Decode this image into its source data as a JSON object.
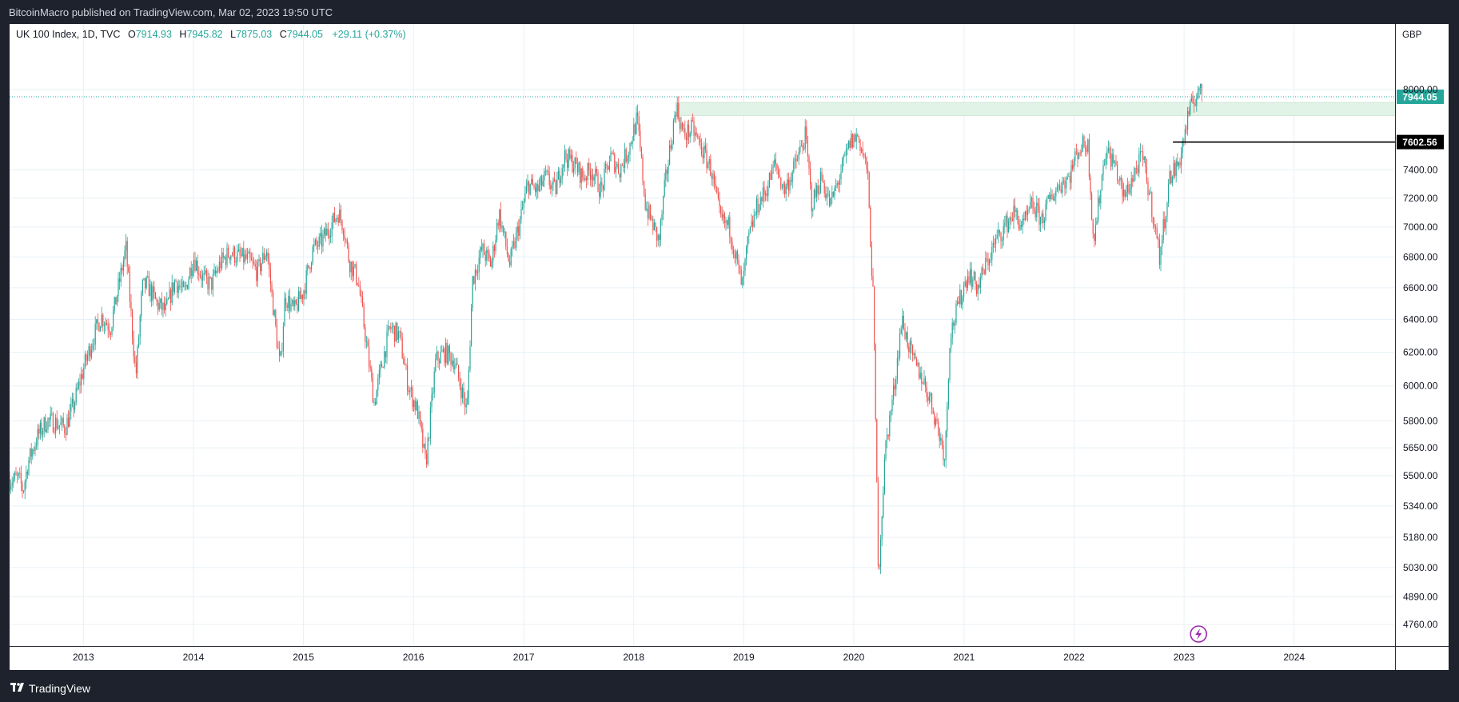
{
  "header": {
    "publisher_line": "BitcoinMacro published on TradingView.com, Mar 02, 2023 19:50 UTC"
  },
  "footer": {
    "brand": "TradingView",
    "logo_icon": "tradingview-logo-icon"
  },
  "legend": {
    "symbol": "UK 100 Index, 1D, TVC",
    "open_label": "O",
    "open": "7914.93",
    "high_label": "H",
    "high": "7945.82",
    "low_label": "L",
    "low": "7875.03",
    "close_label": "C",
    "close": "7944.05",
    "change": "+29.11 (+0.37%)"
  },
  "colors": {
    "up": "#26a69a",
    "down": "#ef5350",
    "grid": "#e8f1f6",
    "text": "#131722",
    "accent": "#26a69a",
    "level_line": "#000000",
    "zone": "#e1f2e6",
    "event": "#9c27b0"
  },
  "chart_data": {
    "type": "candlestick",
    "currency": "GBP",
    "x_ticks": [
      "2013",
      "2014",
      "2015",
      "2016",
      "2017",
      "2018",
      "2019",
      "2020",
      "2021",
      "2022",
      "2023",
      "2024"
    ],
    "y_ticks": [
      "8000.00",
      "7400.00",
      "7200.00",
      "7000.00",
      "6800.00",
      "6600.00",
      "6400.00",
      "6200.00",
      "6000.00",
      "5800.00",
      "5650.00",
      "5500.00",
      "5340.00",
      "5180.00",
      "5030.00",
      "4890.00",
      "4760.00"
    ],
    "y_scale": "log",
    "last_price_label": "7944.05",
    "horizontal_level_label": "7602.56",
    "horizontal_level_start": "2022-11-25",
    "resistance_zone": {
      "from": 7800,
      "to": 7900,
      "start": "2018-05-20"
    },
    "event_icon": "lightning-icon",
    "event_date": "2023-02-18",
    "series": [
      {
        "d": "2012-06-01",
        "v": 5480
      },
      {
        "d": "2012-06-15",
        "v": 5420
      },
      {
        "d": "2012-07-01",
        "v": 5570
      },
      {
        "d": "2012-08-01",
        "v": 5710
      },
      {
        "d": "2012-09-01",
        "v": 5800
      },
      {
        "d": "2012-10-01",
        "v": 5790
      },
      {
        "d": "2012-11-01",
        "v": 5760
      },
      {
        "d": "2012-12-01",
        "v": 5900
      },
      {
        "d": "2013-01-01",
        "v": 6100
      },
      {
        "d": "2013-02-01",
        "v": 6280
      },
      {
        "d": "2013-03-01",
        "v": 6420
      },
      {
        "d": "2013-04-01",
        "v": 6350
      },
      {
        "d": "2013-05-22",
        "v": 6860
      },
      {
        "d": "2013-06-24",
        "v": 6050
      },
      {
        "d": "2013-07-15",
        "v": 6600
      },
      {
        "d": "2013-08-01",
        "v": 6620
      },
      {
        "d": "2013-09-01",
        "v": 6500
      },
      {
        "d": "2013-10-01",
        "v": 6450
      },
      {
        "d": "2013-11-01",
        "v": 6650
      },
      {
        "d": "2013-12-01",
        "v": 6560
      },
      {
        "d": "2014-01-01",
        "v": 6800
      },
      {
        "d": "2014-02-01",
        "v": 6660
      },
      {
        "d": "2014-03-01",
        "v": 6620
      },
      {
        "d": "2014-04-01",
        "v": 6760
      },
      {
        "d": "2014-05-01",
        "v": 6830
      },
      {
        "d": "2014-06-01",
        "v": 6800
      },
      {
        "d": "2014-07-01",
        "v": 6780
      },
      {
        "d": "2014-08-01",
        "v": 6700
      },
      {
        "d": "2014-09-01",
        "v": 6850
      },
      {
        "d": "2014-10-16",
        "v": 6100
      },
      {
        "d": "2014-11-01",
        "v": 6550
      },
      {
        "d": "2014-12-01",
        "v": 6450
      },
      {
        "d": "2015-01-01",
        "v": 6580
      },
      {
        "d": "2015-02-01",
        "v": 6850
      },
      {
        "d": "2015-03-01",
        "v": 6900
      },
      {
        "d": "2015-04-27",
        "v": 7100
      },
      {
        "d": "2015-05-15",
        "v": 7000
      },
      {
        "d": "2015-06-01",
        "v": 6780
      },
      {
        "d": "2015-07-01",
        "v": 6650
      },
      {
        "d": "2015-08-24",
        "v": 5900
      },
      {
        "d": "2015-09-15",
        "v": 6100
      },
      {
        "d": "2015-10-15",
        "v": 6350
      },
      {
        "d": "2015-11-15",
        "v": 6300
      },
      {
        "d": "2015-12-15",
        "v": 6000
      },
      {
        "d": "2016-01-15",
        "v": 5850
      },
      {
        "d": "2016-02-11",
        "v": 5560
      },
      {
        "d": "2016-03-15",
        "v": 6150
      },
      {
        "d": "2016-04-15",
        "v": 6200
      },
      {
        "d": "2016-05-15",
        "v": 6150
      },
      {
        "d": "2016-06-27",
        "v": 5850
      },
      {
        "d": "2016-07-15",
        "v": 6650
      },
      {
        "d": "2016-08-15",
        "v": 6850
      },
      {
        "d": "2016-09-15",
        "v": 6750
      },
      {
        "d": "2016-10-11",
        "v": 7100
      },
      {
        "d": "2016-11-15",
        "v": 6750
      },
      {
        "d": "2016-12-15",
        "v": 7000
      },
      {
        "d": "2017-01-15",
        "v": 7300
      },
      {
        "d": "2017-02-15",
        "v": 7250
      },
      {
        "d": "2017-03-15",
        "v": 7350
      },
      {
        "d": "2017-04-15",
        "v": 7250
      },
      {
        "d": "2017-05-15",
        "v": 7500
      },
      {
        "d": "2017-06-15",
        "v": 7450
      },
      {
        "d": "2017-07-15",
        "v": 7350
      },
      {
        "d": "2017-08-15",
        "v": 7400
      },
      {
        "d": "2017-09-15",
        "v": 7250
      },
      {
        "d": "2017-10-15",
        "v": 7500
      },
      {
        "d": "2017-11-15",
        "v": 7400
      },
      {
        "d": "2017-12-15",
        "v": 7550
      },
      {
        "d": "2018-01-12",
        "v": 7780
      },
      {
        "d": "2018-02-09",
        "v": 7150
      },
      {
        "d": "2018-03-26",
        "v": 6900
      },
      {
        "d": "2018-04-15",
        "v": 7300
      },
      {
        "d": "2018-05-22",
        "v": 7880
      },
      {
        "d": "2018-06-15",
        "v": 7650
      },
      {
        "d": "2018-07-15",
        "v": 7700
      },
      {
        "d": "2018-08-15",
        "v": 7550
      },
      {
        "d": "2018-09-15",
        "v": 7400
      },
      {
        "d": "2018-10-15",
        "v": 7050
      },
      {
        "d": "2018-11-15",
        "v": 7000
      },
      {
        "d": "2018-12-27",
        "v": 6600
      },
      {
        "d": "2019-01-15",
        "v": 6900
      },
      {
        "d": "2019-02-15",
        "v": 7150
      },
      {
        "d": "2019-03-15",
        "v": 7250
      },
      {
        "d": "2019-04-15",
        "v": 7450
      },
      {
        "d": "2019-05-15",
        "v": 7250
      },
      {
        "d": "2019-06-15",
        "v": 7400
      },
      {
        "d": "2019-07-25",
        "v": 7650
      },
      {
        "d": "2019-08-15",
        "v": 7150
      },
      {
        "d": "2019-09-15",
        "v": 7350
      },
      {
        "d": "2019-10-15",
        "v": 7150
      },
      {
        "d": "2019-11-15",
        "v": 7350
      },
      {
        "d": "2019-12-20",
        "v": 7600
      },
      {
        "d": "2020-01-15",
        "v": 7650
      },
      {
        "d": "2020-02-15",
        "v": 7400
      },
      {
        "d": "2020-03-06",
        "v": 6500
      },
      {
        "d": "2020-03-23",
        "v": 4990
      },
      {
        "d": "2020-04-15",
        "v": 5650
      },
      {
        "d": "2020-05-15",
        "v": 6000
      },
      {
        "d": "2020-06-08",
        "v": 6400
      },
      {
        "d": "2020-07-15",
        "v": 6150
      },
      {
        "d": "2020-08-15",
        "v": 6050
      },
      {
        "d": "2020-09-15",
        "v": 5900
      },
      {
        "d": "2020-10-30",
        "v": 5600
      },
      {
        "d": "2020-11-15",
        "v": 6300
      },
      {
        "d": "2020-12-15",
        "v": 6500
      },
      {
        "d": "2021-01-15",
        "v": 6700
      },
      {
        "d": "2021-02-15",
        "v": 6600
      },
      {
        "d": "2021-03-15",
        "v": 6750
      },
      {
        "d": "2021-04-15",
        "v": 6900
      },
      {
        "d": "2021-05-15",
        "v": 7000
      },
      {
        "d": "2021-06-15",
        "v": 7100
      },
      {
        "d": "2021-07-15",
        "v": 7000
      },
      {
        "d": "2021-08-15",
        "v": 7150
      },
      {
        "d": "2021-09-15",
        "v": 7050
      },
      {
        "d": "2021-10-15",
        "v": 7200
      },
      {
        "d": "2021-11-15",
        "v": 7300
      },
      {
        "d": "2021-12-15",
        "v": 7350
      },
      {
        "d": "2022-01-15",
        "v": 7550
      },
      {
        "d": "2022-02-15",
        "v": 7600
      },
      {
        "d": "2022-03-07",
        "v": 6900
      },
      {
        "d": "2022-04-15",
        "v": 7550
      },
      {
        "d": "2022-05-15",
        "v": 7450
      },
      {
        "d": "2022-06-15",
        "v": 7200
      },
      {
        "d": "2022-07-15",
        "v": 7350
      },
      {
        "d": "2022-08-15",
        "v": 7500
      },
      {
        "d": "2022-09-15",
        "v": 7150
      },
      {
        "d": "2022-10-12",
        "v": 6800
      },
      {
        "d": "2022-11-15",
        "v": 7350
      },
      {
        "d": "2022-12-15",
        "v": 7450
      },
      {
        "d": "2023-01-15",
        "v": 7800
      },
      {
        "d": "2023-02-16",
        "v": 8000
      },
      {
        "d": "2023-03-02",
        "v": 7944
      }
    ]
  }
}
